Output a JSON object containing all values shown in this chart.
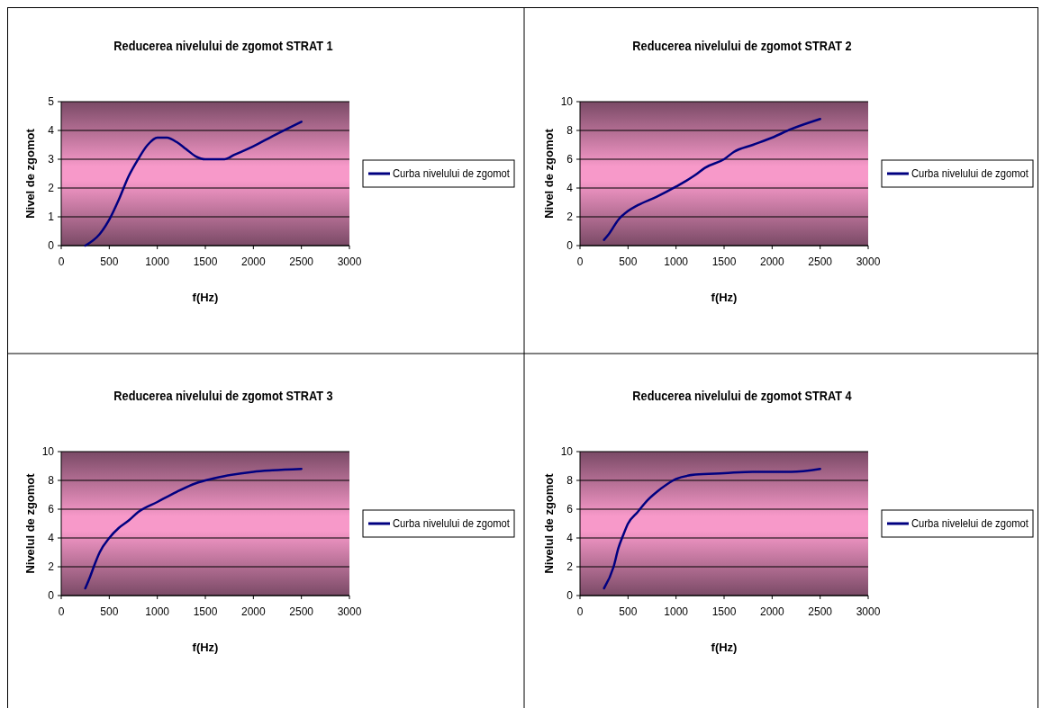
{
  "chart_data": [
    {
      "type": "line",
      "title": "Reducerea nivelului de zgomot STRAT 1",
      "xlabel": "f(Hz)",
      "ylabel": "Nivel de zgomot",
      "legend": "right",
      "grid": "y",
      "xlim": [
        0,
        3000
      ],
      "xticks": [
        0,
        500,
        1000,
        1500,
        2000,
        2500,
        3000
      ],
      "ylim": [
        0,
        5
      ],
      "yticks": [
        0,
        1,
        2,
        3,
        4,
        5
      ],
      "x": [
        250,
        400,
        500,
        600,
        700,
        800,
        900,
        1000,
        1100,
        1200,
        1300,
        1400,
        1500,
        1600,
        1700,
        1800,
        2000,
        2200,
        2500
      ],
      "series": [
        {
          "name": "Curba nivelului de zgomot",
          "color": "#000080",
          "values": [
            0,
            0.4,
            0.9,
            1.6,
            2.4,
            3.0,
            3.5,
            3.75,
            3.75,
            3.6,
            3.35,
            3.1,
            3.0,
            3.0,
            3.0,
            3.15,
            3.45,
            3.8,
            4.3
          ]
        }
      ]
    },
    {
      "type": "line",
      "title": "Reducerea nivelului de zgomot STRAT 2",
      "xlabel": "f(Hz)",
      "ylabel": "Nivel de zgomot",
      "legend": "right",
      "grid": "y",
      "xlim": [
        0,
        3000
      ],
      "xticks": [
        0,
        500,
        1000,
        1500,
        2000,
        2500,
        3000
      ],
      "ylim": [
        0,
        10
      ],
      "yticks": [
        0,
        2,
        4,
        6,
        8,
        10
      ],
      "x": [
        250,
        300,
        400,
        500,
        600,
        800,
        1000,
        1200,
        1300,
        1500,
        1600,
        1800,
        2000,
        2200,
        2500
      ],
      "series": [
        {
          "name": "Curba nivelului de zgomot",
          "color": "#000080",
          "values": [
            0.4,
            0.8,
            1.8,
            2.4,
            2.8,
            3.4,
            4.1,
            4.9,
            5.4,
            6.0,
            6.5,
            7.0,
            7.5,
            8.1,
            8.8
          ]
        }
      ]
    },
    {
      "type": "line",
      "title": "Reducerea nivelului de zgomot STRAT 3",
      "xlabel": "f(Hz)",
      "ylabel": "Nivelul de zgomot",
      "legend": "right",
      "grid": "y",
      "xlim": [
        0,
        3000
      ],
      "xticks": [
        0,
        500,
        1000,
        1500,
        2000,
        2500,
        3000
      ],
      "ylim": [
        0,
        10
      ],
      "yticks": [
        0,
        2,
        4,
        6,
        8,
        10
      ],
      "x": [
        250,
        300,
        350,
        400,
        500,
        600,
        700,
        800,
        1000,
        1200,
        1400,
        1500,
        1700,
        2000,
        2200,
        2500
      ],
      "series": [
        {
          "name": "Curba nivelului de zgomot",
          "color": "#000080",
          "values": [
            0.5,
            1.3,
            2.2,
            3.0,
            4.0,
            4.7,
            5.2,
            5.8,
            6.5,
            7.2,
            7.8,
            8.0,
            8.3,
            8.6,
            8.7,
            8.8
          ]
        }
      ]
    },
    {
      "type": "line",
      "title": "Reducerea nivelului de zgomot STRAT 4",
      "xlabel": "f(Hz)",
      "ylabel": "Nivelul de zgomot",
      "legend": "right",
      "grid": "y",
      "xlim": [
        0,
        3000
      ],
      "xticks": [
        0,
        500,
        1000,
        1500,
        2000,
        2500,
        3000
      ],
      "ylim": [
        0,
        10
      ],
      "yticks": [
        0,
        2,
        4,
        6,
        8,
        10
      ],
      "x": [
        250,
        350,
        400,
        450,
        500,
        600,
        700,
        800,
        900,
        1000,
        1200,
        1500,
        1800,
        2200,
        2500
      ],
      "series": [
        {
          "name": "Curba nivelelui de zgomot",
          "color": "#000080",
          "values": [
            0.5,
            2.0,
            3.3,
            4.2,
            5.0,
            5.8,
            6.6,
            7.2,
            7.7,
            8.1,
            8.4,
            8.5,
            8.6,
            8.6,
            8.8
          ]
        }
      ]
    }
  ]
}
